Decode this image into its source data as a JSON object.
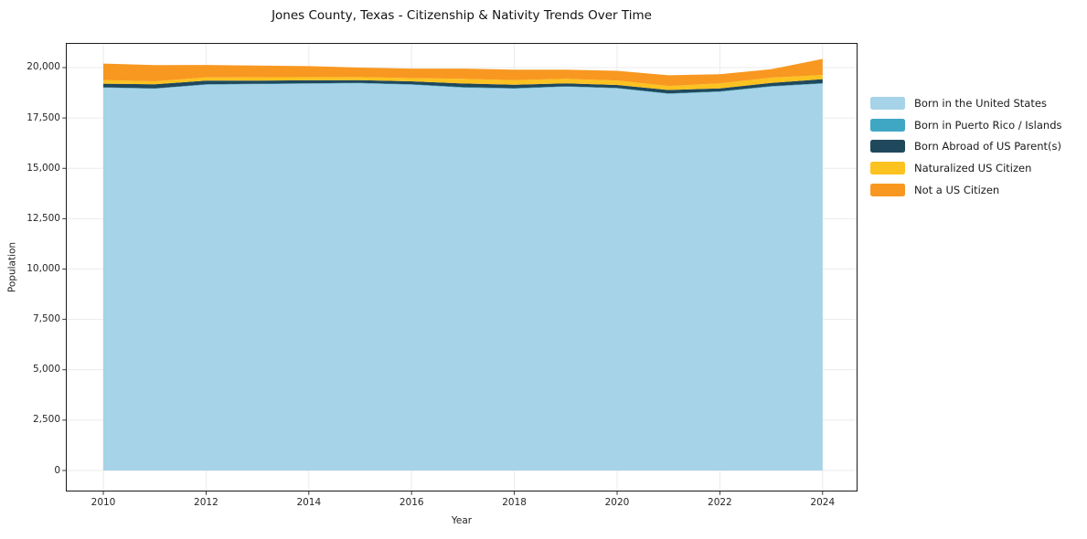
{
  "chart_data": {
    "type": "area",
    "stacked": true,
    "title": "Jones County, Texas - Citizenship & Nativity Trends Over Time",
    "xlabel": "Year",
    "ylabel": "Population",
    "x": [
      2010,
      2011,
      2012,
      2013,
      2014,
      2015,
      2016,
      2017,
      2018,
      2019,
      2020,
      2021,
      2022,
      2023,
      2024
    ],
    "series": [
      {
        "name": "Born in the United States",
        "color": "#a6d3e8",
        "values": [
          19000,
          18950,
          19150,
          19180,
          19200,
          19220,
          19150,
          19000,
          18950,
          19050,
          18970,
          18700,
          18800,
          19050,
          19200
        ]
      },
      {
        "name": "Born in Puerto Rico / Islands",
        "color": "#3fa7c3",
        "values": [
          20,
          20,
          20,
          20,
          20,
          20,
          20,
          30,
          30,
          20,
          20,
          20,
          20,
          30,
          30
        ]
      },
      {
        "name": "Born Abroad of US Parent(s)",
        "color": "#20485c",
        "values": [
          180,
          200,
          180,
          150,
          150,
          140,
          150,
          180,
          170,
          150,
          150,
          170,
          150,
          160,
          200
        ]
      },
      {
        "name": "Naturalized US Citizen",
        "color": "#fcc220",
        "values": [
          180,
          150,
          160,
          170,
          160,
          150,
          160,
          230,
          230,
          220,
          220,
          200,
          250,
          260,
          200
        ]
      },
      {
        "name": "Not a US Citizen",
        "color": "#f89820",
        "values": [
          820,
          800,
          620,
          580,
          540,
          470,
          470,
          510,
          520,
          460,
          480,
          530,
          450,
          420,
          800
        ]
      }
    ],
    "xticks": {
      "values": [
        2010,
        2012,
        2014,
        2016,
        2018,
        2020,
        2022,
        2024
      ],
      "labels": [
        "2010",
        "2012",
        "2014",
        "2016",
        "2018",
        "2020",
        "2022",
        "2024"
      ]
    },
    "yticks": {
      "values": [
        0,
        2500,
        5000,
        7500,
        10000,
        12500,
        15000,
        17500,
        20000
      ],
      "labels": [
        "0",
        "2,500",
        "5,000",
        "7,500",
        "10,000",
        "12,500",
        "15,000",
        "17,500",
        "20,000"
      ]
    },
    "xlim": [
      2009.27,
      2024.68
    ],
    "ylim": [
      -1043,
      21224
    ],
    "grid": true,
    "grid_color": "#ebebeb",
    "border_color": "#1a1a1a",
    "tick_color": "#262626",
    "legend_position": "right"
  }
}
